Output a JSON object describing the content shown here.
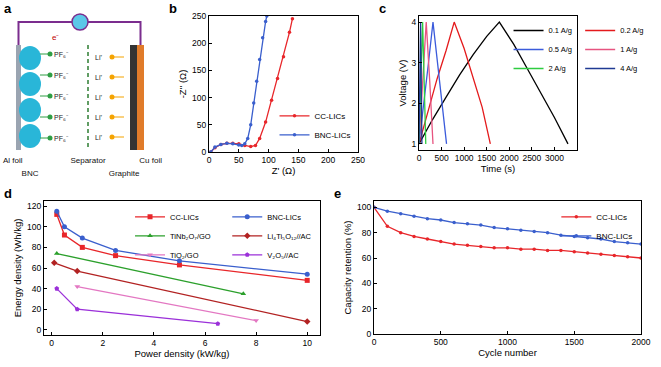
{
  "diagram": {
    "panel": "a",
    "labels": {
      "al_foil": "Al foil",
      "bnc": "BNC",
      "separator": "Separator",
      "graphite": "Graphite",
      "cu_foil": "Cu foil"
    },
    "electron": "e⁻",
    "anions": [
      "PF₆⁻",
      "PF₆⁻",
      "PF₆⁻",
      "PF₆⁻",
      "PF₆⁻"
    ],
    "cations": [
      "Li⁺",
      "Li⁺",
      "Li⁺",
      "Li⁺",
      "Li⁺"
    ]
  },
  "chart_data": [
    {
      "panel": "b",
      "type": "line",
      "xlabel": "Z' (Ω)",
      "ylabel": "-Z'' (Ω)",
      "xlim": [
        0,
        250
      ],
      "xticks": [
        0,
        50,
        100,
        150,
        200,
        250
      ],
      "ylim": [
        0,
        250
      ],
      "yticks": [
        0,
        50,
        100,
        150,
        200,
        250
      ],
      "grid": false,
      "legend": "lower right",
      "marker": "circle",
      "series": [
        {
          "name": "CC-LICs",
          "color": "#e8262a",
          "x": [
            3,
            10,
            20,
            30,
            40,
            50,
            60,
            70,
            78,
            85,
            95,
            105,
            115,
            125,
            135,
            140
          ],
          "values": [
            0,
            8,
            14,
            16,
            16,
            15,
            12,
            10,
            12,
            25,
            55,
            95,
            135,
            175,
            220,
            245
          ]
        },
        {
          "name": "BNC-LICs",
          "color": "#3a5fcd",
          "x": [
            3,
            10,
            20,
            30,
            40,
            50,
            55,
            60,
            65,
            70,
            75,
            80,
            85,
            90,
            95,
            97
          ],
          "values": [
            0,
            9,
            14,
            16,
            15,
            13,
            12,
            15,
            25,
            50,
            90,
            130,
            170,
            210,
            240,
            250
          ]
        }
      ]
    },
    {
      "panel": "c",
      "type": "line",
      "xlabel": "Time (s)",
      "ylabel": "Voltage (V)",
      "xlim": [
        0,
        3500
      ],
      "xticks": [
        0,
        500,
        1000,
        1500,
        2000,
        2500,
        3000
      ],
      "ylim": [
        0.85,
        4.15
      ],
      "yticks": [
        1,
        2,
        3,
        4
      ],
      "grid": false,
      "legend": "right",
      "series": [
        {
          "name": "0.1 A/g",
          "color": "#000000",
          "x": [
            0,
            300,
            600,
            900,
            1200,
            1500,
            1780,
            2100,
            2400,
            2700,
            3000,
            3300
          ],
          "values": [
            1.0,
            1.6,
            2.15,
            2.7,
            3.2,
            3.65,
            4.0,
            3.45,
            2.85,
            2.25,
            1.65,
            1.0
          ]
        },
        {
          "name": "0.2 A/g",
          "color": "#e41a1c",
          "x": [
            0,
            200,
            400,
            600,
            780,
            1000,
            1200,
            1400,
            1580
          ],
          "values": [
            1.0,
            1.8,
            2.6,
            3.3,
            4.0,
            3.35,
            2.65,
            1.9,
            1.0
          ]
        },
        {
          "name": "0.5 A/g",
          "color": "#3b5bdb",
          "x": [
            0,
            100,
            200,
            310,
            410,
            510,
            610
          ],
          "values": [
            1.0,
            1.9,
            2.9,
            4.0,
            3.0,
            2.0,
            1.0
          ]
        },
        {
          "name": "1 A/g",
          "color": "#e75480",
          "x": [
            0,
            80,
            160,
            240,
            310
          ],
          "values": [
            1.0,
            2.6,
            4.0,
            2.5,
            1.0
          ]
        },
        {
          "name": "2 A/g",
          "color": "#2ecc40",
          "x": [
            0,
            40,
            80,
            115,
            150
          ],
          "values": [
            1.0,
            2.6,
            4.0,
            2.5,
            1.0
          ]
        },
        {
          "name": "4 A/g",
          "color": "#1f3a93",
          "x": [
            0,
            35,
            65
          ],
          "values": [
            1.0,
            4.0,
            1.0
          ]
        }
      ]
    },
    {
      "panel": "d",
      "type": "line",
      "xlabel": "Power density (kW/kg)",
      "ylabel": "Energy density (Wh/kg)",
      "xlim": [
        -0.3,
        10.5
      ],
      "xticks": [
        0,
        2,
        4,
        6,
        8,
        10
      ],
      "ylim": [
        -5,
        125
      ],
      "yticks": [
        0,
        20,
        40,
        60,
        80,
        100,
        120
      ],
      "grid": false,
      "legend": "upper right",
      "series": [
        {
          "name": "CC-LICs",
          "color": "#e8262a",
          "marker": "square",
          "x": [
            0.2,
            0.5,
            1.2,
            2.5,
            5,
            10
          ],
          "values": [
            112,
            92,
            80,
            72,
            63,
            48
          ]
        },
        {
          "name": "BNC-LICs",
          "color": "#3a5fcd",
          "marker": "circle",
          "x": [
            0.2,
            0.5,
            1.2,
            2.5,
            5,
            10
          ],
          "values": [
            115,
            100,
            89,
            77,
            67,
            54
          ]
        },
        {
          "name": "TiNb₂O₇/GO",
          "color": "#2ca02c",
          "marker": "triangle-up",
          "x": [
            0.2,
            7.5
          ],
          "values": [
            74,
            35
          ]
        },
        {
          "name": "Li₄Ti₅O₁₂//AC",
          "color": "#b22222",
          "marker": "diamond",
          "x": [
            0.1,
            1,
            10
          ],
          "values": [
            65,
            57,
            8
          ]
        },
        {
          "name": "TiO₂/GO",
          "color": "#e377c2",
          "marker": "triangle-down",
          "x": [
            1,
            8
          ],
          "values": [
            42,
            9
          ]
        },
        {
          "name": "V₂O₅//AC",
          "color": "#9b30d9",
          "marker": "pentagon",
          "x": [
            0.2,
            1,
            6.5
          ],
          "values": [
            40,
            20,
            6
          ]
        }
      ]
    },
    {
      "panel": "e",
      "type": "line",
      "xlabel": "Cycle number",
      "ylabel": "Capacity retention (%)",
      "xlim": [
        0,
        2000
      ],
      "xticks": [
        0,
        500,
        1000,
        1500,
        2000
      ],
      "ylim": [
        0,
        105
      ],
      "yticks": [
        0,
        20,
        40,
        60,
        80,
        100
      ],
      "grid": false,
      "legend": "upper right",
      "marker": "circle",
      "series": [
        {
          "name": "CC-LICs",
          "color": "#e8262a",
          "x": [
            0,
            100,
            200,
            300,
            400,
            500,
            600,
            700,
            800,
            900,
            1000,
            1100,
            1200,
            1300,
            1400,
            1500,
            1600,
            1700,
            1800,
            1900,
            2000
          ],
          "values": [
            100,
            85,
            80,
            77,
            75,
            73,
            71,
            70,
            69,
            68,
            68,
            67,
            67,
            66,
            66,
            65,
            64,
            63,
            62,
            61,
            60
          ]
        },
        {
          "name": "BNC-LICs",
          "color": "#3a5fcd",
          "x": [
            0,
            100,
            200,
            300,
            400,
            500,
            600,
            700,
            800,
            900,
            1000,
            1100,
            1200,
            1300,
            1400,
            1500,
            1600,
            1700,
            1800,
            1900,
            2000
          ],
          "values": [
            100,
            97,
            95,
            93,
            91,
            90,
            88,
            87,
            86,
            84,
            83,
            82,
            81,
            80,
            78,
            77,
            76,
            75,
            73,
            72,
            71
          ]
        }
      ]
    }
  ]
}
